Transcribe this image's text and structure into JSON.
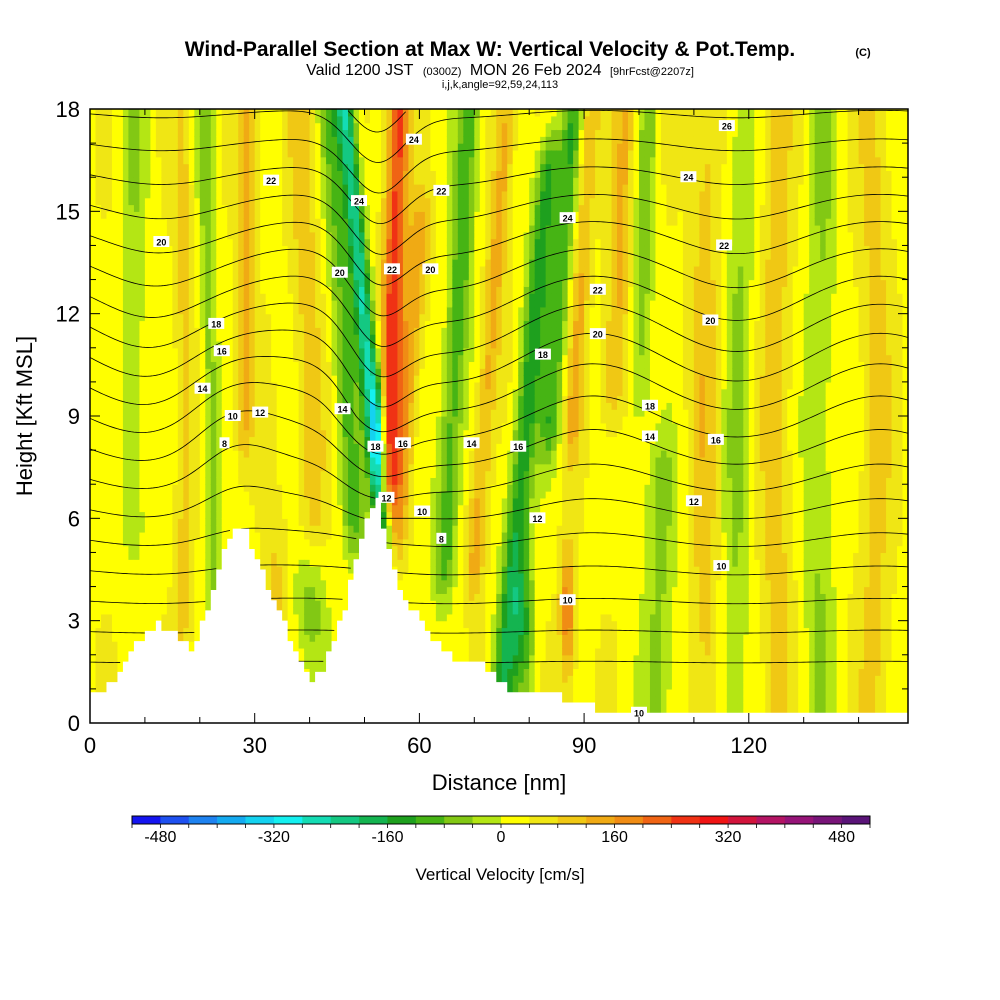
{
  "title": {
    "main": "Wind-Parallel Section at Max W: Vertical Velocity & Pot.Temp.",
    "copyright": "(C)",
    "valid_prefix": "Valid 1200 JST",
    "valid_utc": "(0300Z)",
    "valid_date": "MON 26 Feb 2024",
    "forecast": "[9hrFcst@2207z]",
    "section_params": "i,j,k,angle=92,59,24,113"
  },
  "chart_data": {
    "type": "heatmap",
    "title": "Wind-Parallel Section at Max W: Vertical Velocity & Pot.Temp.",
    "xlabel": "Distance [nm]",
    "ylabel": "Height [Kft MSL]",
    "xlim": [
      0,
      149
    ],
    "ylim": [
      0,
      18
    ],
    "x_ticks": [
      0,
      30,
      60,
      90,
      120
    ],
    "y_ticks": [
      0,
      3,
      6,
      9,
      12,
      15,
      18
    ],
    "colorbar": {
      "title": "Vertical Velocity [cm/s]",
      "min": -480,
      "max": 480,
      "step": 40,
      "tick_values": [
        -480,
        -320,
        -160,
        0,
        160,
        320,
        480
      ],
      "tick_labels": [
        "-480",
        "-320",
        "-160",
        "0",
        "160",
        "320",
        "480"
      ],
      "colors": [
        "#1414f0",
        "#1e50f0",
        "#1e82f0",
        "#14aaf0",
        "#14d2f0",
        "#14f0f0",
        "#14dcb4",
        "#14c882",
        "#14b450",
        "#1ea01e",
        "#46b414",
        "#82c814",
        "#b4e614",
        "#ffff00",
        "#f0e614",
        "#f0c814",
        "#f0aa14",
        "#f08c14",
        "#f06414",
        "#f03214",
        "#f01414",
        "#d2143c",
        "#b41464",
        "#961478",
        "#781478",
        "#5a1478"
      ]
    },
    "terrain": {
      "x": [
        0,
        2,
        4,
        6,
        8,
        10,
        12,
        14,
        16,
        18,
        20,
        22,
        24,
        26,
        28,
        30,
        32,
        34,
        36,
        38,
        40,
        42,
        44,
        46,
        48,
        50,
        52,
        54,
        56,
        58,
        60,
        62,
        64,
        66,
        68,
        70,
        72,
        74,
        76,
        78,
        80,
        82,
        84,
        86,
        88,
        90,
        92,
        94,
        96,
        98,
        100,
        110,
        120,
        130,
        140,
        149
      ],
      "height": [
        1.0,
        1.0,
        1.3,
        1.8,
        2.3,
        2.6,
        2.9,
        2.7,
        2.5,
        2.0,
        3.0,
        3.8,
        5.0,
        5.8,
        5.6,
        4.8,
        4.0,
        3.2,
        2.5,
        1.8,
        1.3,
        1.6,
        2.4,
        3.4,
        4.8,
        6.0,
        6.5,
        5.0,
        3.8,
        3.4,
        2.9,
        2.5,
        2.1,
        1.9,
        1.8,
        1.8,
        1.5,
        1.2,
        1.0,
        1.0,
        0.9,
        0.9,
        0.8,
        0.7,
        0.6,
        0.5,
        0.4,
        0.35,
        0.3,
        0.3,
        0.3,
        0.3,
        0.3,
        0.3,
        0.3,
        0.3
      ]
    },
    "potential_temperature_contours": {
      "unit_interval": 1,
      "labels": [
        {
          "value": "20",
          "x": 13,
          "y": 14.1
        },
        {
          "value": "22",
          "x": 33,
          "y": 15.9
        },
        {
          "value": "18",
          "x": 23,
          "y": 11.7
        },
        {
          "value": "16",
          "x": 24,
          "y": 10.9
        },
        {
          "value": "14",
          "x": 20.5,
          "y": 9.8
        },
        {
          "value": "10",
          "x": 26,
          "y": 9.0
        },
        {
          "value": "12",
          "x": 31,
          "y": 9.1
        },
        {
          "value": "8",
          "x": 24.5,
          "y": 8.2
        },
        {
          "value": "24",
          "x": 49,
          "y": 15.3
        },
        {
          "value": "20",
          "x": 45.5,
          "y": 13.2
        },
        {
          "value": "14",
          "x": 46,
          "y": 9.2
        },
        {
          "value": "18",
          "x": 52,
          "y": 8.1
        },
        {
          "value": "12",
          "x": 54,
          "y": 6.6
        },
        {
          "value": "16",
          "x": 57,
          "y": 8.2
        },
        {
          "value": "10",
          "x": 60.5,
          "y": 6.2
        },
        {
          "value": "8",
          "x": 64,
          "y": 5.4
        },
        {
          "value": "22",
          "x": 55,
          "y": 13.3
        },
        {
          "value": "24",
          "x": 59,
          "y": 17.1
        },
        {
          "value": "22",
          "x": 64,
          "y": 15.6
        },
        {
          "value": "20",
          "x": 62,
          "y": 13.3
        },
        {
          "value": "14",
          "x": 69.5,
          "y": 8.2
        },
        {
          "value": "16",
          "x": 78,
          "y": 8.1
        },
        {
          "value": "12",
          "x": 81.5,
          "y": 6.0
        },
        {
          "value": "10",
          "x": 87,
          "y": 3.6
        },
        {
          "value": "18",
          "x": 82.5,
          "y": 10.8
        },
        {
          "value": "24",
          "x": 87,
          "y": 14.8
        },
        {
          "value": "22",
          "x": 92.5,
          "y": 12.7
        },
        {
          "value": "20",
          "x": 92.5,
          "y": 11.4
        },
        {
          "value": "18",
          "x": 102,
          "y": 9.3
        },
        {
          "value": "14",
          "x": 102,
          "y": 8.4
        },
        {
          "value": "16",
          "x": 114,
          "y": 8.3
        },
        {
          "value": "12",
          "x": 110,
          "y": 6.5
        },
        {
          "value": "10",
          "x": 115,
          "y": 4.6
        },
        {
          "value": "10",
          "x": 100,
          "y": 0.3
        },
        {
          "value": "26",
          "x": 116,
          "y": 17.5
        },
        {
          "value": "24",
          "x": 109,
          "y": 16.0
        },
        {
          "value": "22",
          "x": 115.5,
          "y": 14.0
        },
        {
          "value": "20",
          "x": 113,
          "y": 11.8
        }
      ]
    }
  }
}
